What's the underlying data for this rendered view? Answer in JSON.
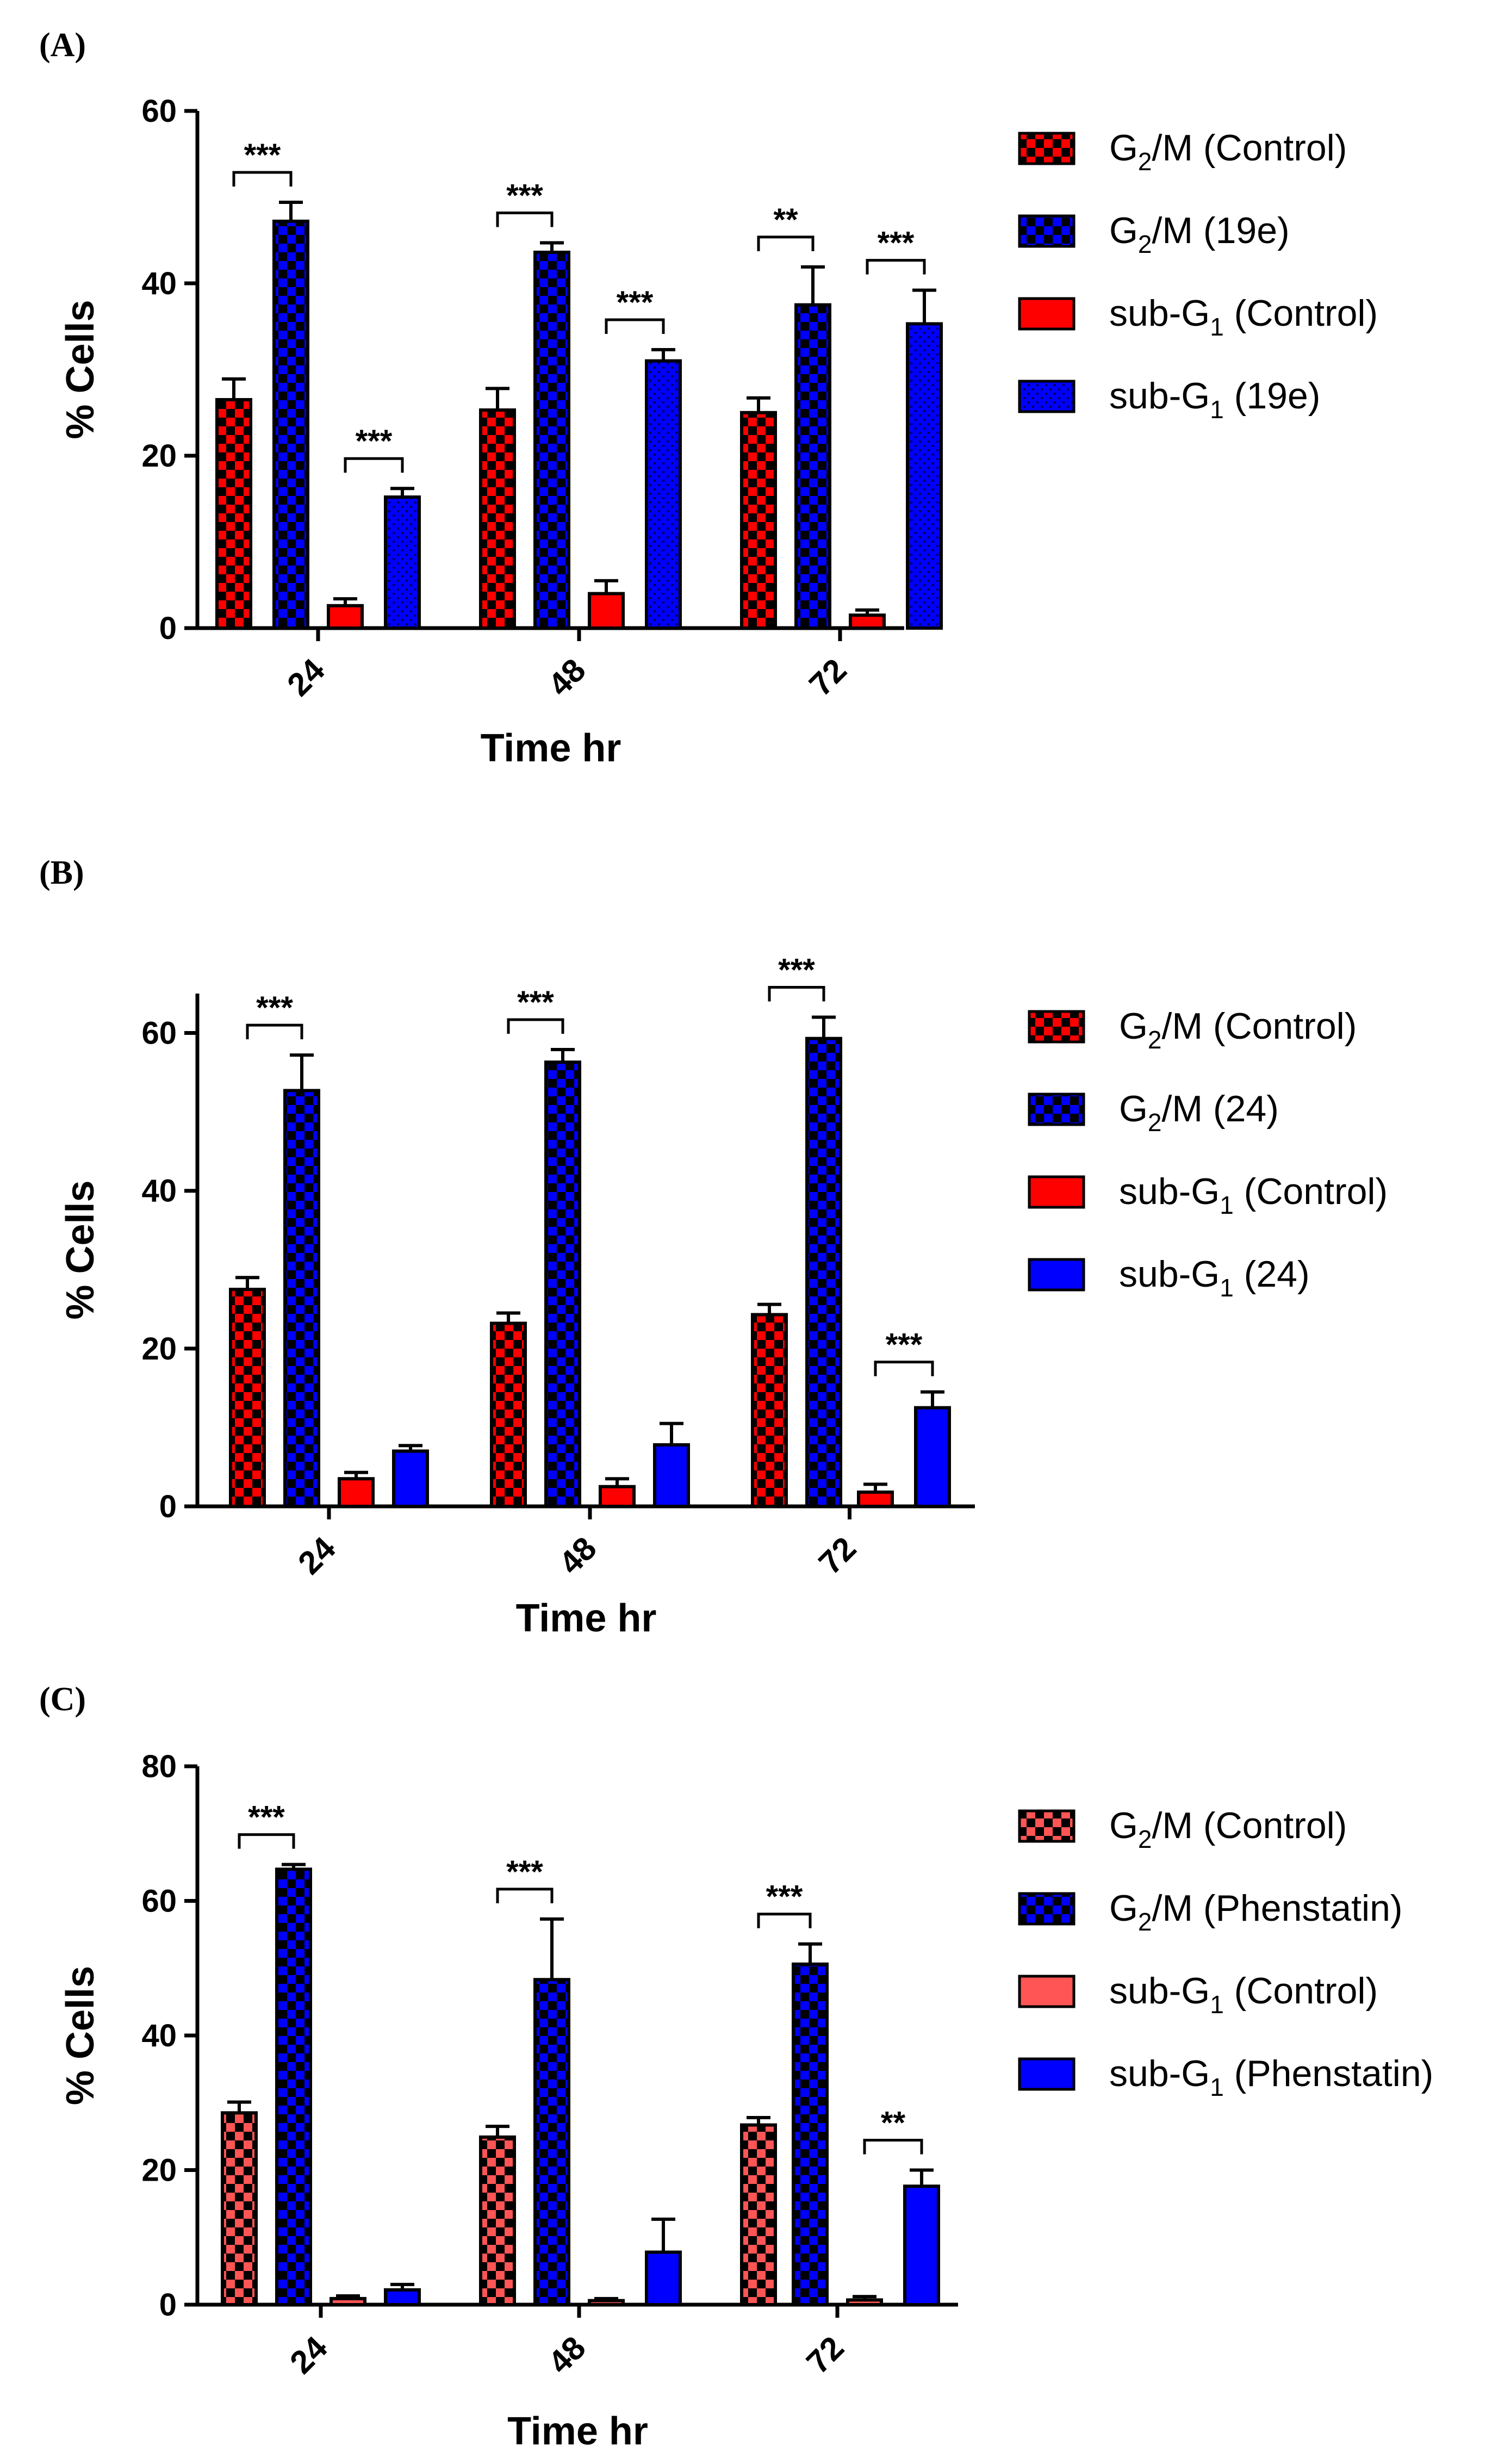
{
  "colors": {
    "red": "#ff0000",
    "blue": "#0000ff",
    "salmon": "#ff5555",
    "black": "#000000"
  },
  "chart_data": [
    {
      "type": "bar",
      "panel_label": "(A)",
      "xlabel": "Time hr",
      "ylabel": "% Cells",
      "ylim": [
        0,
        60
      ],
      "yticks": [
        0,
        20,
        40,
        60
      ],
      "categories": [
        "24",
        "48",
        "72"
      ],
      "series": [
        {
          "name_main": "G",
          "name_sub": "2",
          "name_rest": "/M (Control)",
          "color": "#ff0000",
          "pattern": "checker",
          "values": [
            26.5,
            25.3,
            25.0
          ],
          "errors": [
            2.4,
            2.5,
            1.7
          ]
        },
        {
          "name_main": "G",
          "name_sub": "2",
          "name_rest": "/M (19e)",
          "color": "#0000ff",
          "pattern": "checker",
          "values": [
            47.2,
            43.6,
            37.5
          ],
          "errors": [
            2.2,
            1.1,
            4.4
          ]
        },
        {
          "name_main": "sub-G",
          "name_sub": "1",
          "name_rest": " (Control)",
          "color": "#ff0000",
          "pattern": "solid",
          "values": [
            2.6,
            4.0,
            1.5
          ],
          "errors": [
            0.8,
            1.5,
            0.6
          ]
        },
        {
          "name_main": "sub-G",
          "name_sub": "1",
          "name_rest": " (19e)",
          "color": "#0000ff",
          "pattern": "dots",
          "values": [
            15.2,
            31.0,
            35.3
          ],
          "errors": [
            1.0,
            1.3,
            3.9
          ]
        }
      ],
      "significance": [
        {
          "category": 0,
          "from": 0,
          "to": 1,
          "label": "***"
        },
        {
          "category": 0,
          "from": 2,
          "to": 3,
          "label": "***"
        },
        {
          "category": 1,
          "from": 0,
          "to": 1,
          "label": "***"
        },
        {
          "category": 1,
          "from": 2,
          "to": 3,
          "label": "***"
        },
        {
          "category": 2,
          "from": 0,
          "to": 1,
          "label": "**"
        },
        {
          "category": 2,
          "from": 2,
          "to": 3,
          "label": "***"
        }
      ]
    },
    {
      "type": "bar",
      "panel_label": "(B)",
      "xlabel": "Time hr",
      "ylabel": "% Cells",
      "ylim": [
        0,
        65
      ],
      "yticks": [
        0,
        20,
        40,
        60
      ],
      "categories": [
        "24",
        "48",
        "72"
      ],
      "series": [
        {
          "name_main": "G",
          "name_sub": "2",
          "name_rest": "/M (Control)",
          "color": "#ff0000",
          "pattern": "checker",
          "values": [
            27.5,
            23.2,
            24.3
          ],
          "errors": [
            1.5,
            1.3,
            1.3
          ]
        },
        {
          "name_main": "G",
          "name_sub": "2",
          "name_rest": "/M (24)",
          "color": "#0000ff",
          "pattern": "checker",
          "values": [
            52.7,
            56.3,
            59.3
          ],
          "errors": [
            4.5,
            1.6,
            2.7
          ]
        },
        {
          "name_main": "sub-G",
          "name_sub": "1",
          "name_rest": " (Control)",
          "color": "#ff0000",
          "pattern": "solid",
          "values": [
            3.5,
            2.5,
            1.8
          ],
          "errors": [
            0.8,
            1.0,
            1.0
          ]
        },
        {
          "name_main": "sub-G",
          "name_sub": "1",
          "name_rest": " (24)",
          "color": "#0000ff",
          "pattern": "solid",
          "values": [
            7.0,
            7.8,
            12.5
          ],
          "errors": [
            0.7,
            2.7,
            2.0
          ]
        }
      ],
      "significance": [
        {
          "category": 0,
          "from": 0,
          "to": 1,
          "label": "***"
        },
        {
          "category": 1,
          "from": 0,
          "to": 1,
          "label": "***"
        },
        {
          "category": 2,
          "from": 0,
          "to": 1,
          "label": "***"
        },
        {
          "category": 2,
          "from": 2,
          "to": 3,
          "label": "***"
        }
      ]
    },
    {
      "type": "bar",
      "panel_label": "(C)",
      "xlabel": "Time hr",
      "ylabel": "% Cells",
      "ylim": [
        0,
        80
      ],
      "yticks": [
        0,
        20,
        40,
        60,
        80
      ],
      "categories": [
        "24",
        "48",
        "72"
      ],
      "series": [
        {
          "name_main": "G",
          "name_sub": "2",
          "name_rest": "/M (Control)",
          "color": "#ff5555",
          "pattern": "checker",
          "values": [
            28.5,
            24.9,
            26.7
          ],
          "errors": [
            1.6,
            1.6,
            1.1
          ]
        },
        {
          "name_main": "G",
          "name_sub": "2",
          "name_rest": "/M (Phenstatin)",
          "color": "#0000ff",
          "pattern": "checker",
          "values": [
            64.7,
            48.3,
            50.6
          ],
          "errors": [
            0.7,
            9.0,
            3.0
          ]
        },
        {
          "name_main": "sub-G",
          "name_sub": "1",
          "name_rest": " (Control)",
          "color": "#ff5555",
          "pattern": "solid",
          "values": [
            0.9,
            0.6,
            0.7
          ],
          "errors": [
            0.4,
            0.3,
            0.5
          ]
        },
        {
          "name_main": "sub-G",
          "name_sub": "1",
          "name_rest": " (Phenstatin)",
          "color": "#0000ff",
          "pattern": "solid",
          "values": [
            2.2,
            7.8,
            17.6
          ],
          "errors": [
            0.8,
            4.9,
            2.4
          ]
        }
      ],
      "significance": [
        {
          "category": 0,
          "from": 0,
          "to": 1,
          "label": "***"
        },
        {
          "category": 1,
          "from": 0,
          "to": 1,
          "label": "***"
        },
        {
          "category": 2,
          "from": 0,
          "to": 1,
          "label": "***"
        },
        {
          "category": 2,
          "from": 2,
          "to": 3,
          "label": "**"
        }
      ]
    }
  ]
}
